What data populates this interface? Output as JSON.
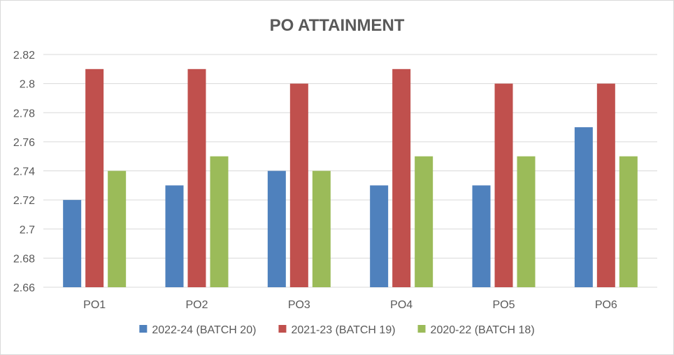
{
  "chart_data": {
    "type": "bar",
    "title": "PO ATTAINMENT",
    "xlabel": "",
    "ylabel": "",
    "categories": [
      "PO1",
      "PO2",
      "PO3",
      "PO4",
      "PO5",
      "PO6"
    ],
    "series": [
      {
        "name": "2022-24 (BATCH 20)",
        "color": "#4f81bd",
        "values": [
          2.72,
          2.73,
          2.74,
          2.73,
          2.73,
          2.77
        ]
      },
      {
        "name": "2021-23 (BATCH 19)",
        "color": "#c0504d",
        "values": [
          2.81,
          2.81,
          2.8,
          2.81,
          2.8,
          2.8
        ]
      },
      {
        "name": "2020-22 (BATCH 18)",
        "color": "#9bbb59",
        "values": [
          2.74,
          2.75,
          2.74,
          2.75,
          2.75,
          2.75
        ]
      }
    ],
    "ylim": [
      2.66,
      2.82
    ],
    "yticks": [
      "2.66",
      "2.68",
      "2.7",
      "2.72",
      "2.74",
      "2.76",
      "2.78",
      "2.8",
      "2.82"
    ],
    "grid": true,
    "legend_position": "bottom"
  }
}
